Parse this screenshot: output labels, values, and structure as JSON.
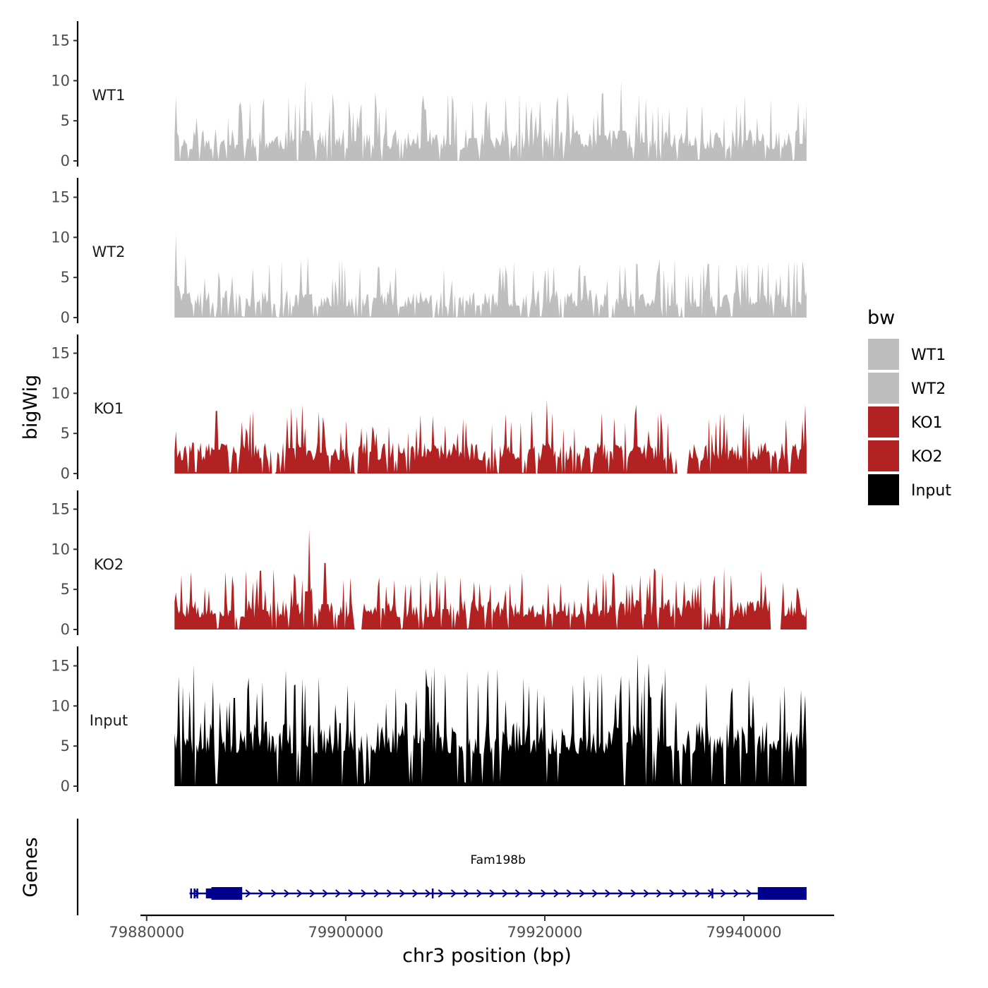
{
  "chart_data": {
    "type": "area",
    "chromosome": "chr3",
    "xlabel": "chr3 position (bp)",
    "ylabel": "bigWig",
    "genes_label": "Genes",
    "xlim": [
      79879800,
      79949000
    ],
    "xticks": [
      79880000,
      79900000,
      79920000,
      79940000
    ],
    "xtick_labels": [
      "79880000",
      "79900000",
      "79920000",
      "79940000"
    ],
    "ylim": [
      0,
      17
    ],
    "yticks": [
      0,
      5,
      10,
      15
    ],
    "ytick_labels": [
      "0",
      "5",
      "10",
      "15"
    ],
    "data_range": [
      79882800,
      79946300
    ],
    "legend": {
      "title": "bw",
      "entries": [
        {
          "label": "WT1",
          "color": "#bebebe"
        },
        {
          "label": "WT2",
          "color": "#bebebe"
        },
        {
          "label": "KO1",
          "color": "#b22222"
        },
        {
          "label": "KO2",
          "color": "#b22222"
        },
        {
          "label": "Input",
          "color": "#000000"
        }
      ]
    },
    "series": [
      {
        "name": "WT1",
        "color": "#bebebe",
        "base": 1.4,
        "amp": 4.8,
        "seed": 11,
        "peaks": [
          [
            79882900,
            8.0
          ],
          [
            79895950,
            9.9
          ],
          [
            79908000,
            6.4
          ],
          [
            79912800,
            7.5
          ],
          [
            79925800,
            8.4
          ],
          [
            79927700,
            9.9
          ],
          [
            79936600,
            4.0
          ],
          [
            79946000,
            5.6
          ]
        ],
        "gaps": [
          [
            79901600,
            79901800
          ],
          [
            79911200,
            79911400
          ],
          [
            79933200,
            79933400
          ]
        ]
      },
      {
        "name": "WT2",
        "color": "#bebebe",
        "base": 1.3,
        "amp": 4.0,
        "seed": 23,
        "peaks": [
          [
            79882900,
            10.4
          ],
          [
            79883900,
            7.8
          ],
          [
            79896200,
            7.6
          ],
          [
            79903300,
            6.3
          ],
          [
            79920900,
            6.4
          ],
          [
            79924000,
            5.2
          ],
          [
            79941500,
            5.1
          ],
          [
            79945900,
            4.1
          ]
        ],
        "gaps": [
          [
            79893200,
            79893300
          ],
          [
            79908700,
            79909000
          ],
          [
            79921700,
            79921900
          ],
          [
            79926400,
            79926700
          ],
          [
            79933800,
            79934100
          ]
        ]
      },
      {
        "name": "KO1",
        "color": "#b22222",
        "base": 1.6,
        "amp": 4.2,
        "seed": 37,
        "peaks": [
          [
            79882900,
            5.3
          ],
          [
            79887000,
            7.8
          ],
          [
            79894500,
            8.3
          ],
          [
            79895600,
            8.6
          ],
          [
            79897300,
            6.8
          ],
          [
            79916600,
            6.5
          ],
          [
            79918700,
            7.9
          ],
          [
            79920200,
            9.2
          ],
          [
            79929200,
            8.6
          ],
          [
            79946200,
            8.6
          ]
        ],
        "gaps": [
          [
            79892600,
            79892900
          ],
          [
            79901000,
            79901200
          ],
          [
            79914000,
            79914200
          ],
          [
            79919000,
            79919300
          ],
          [
            79933300,
            79934300
          ]
        ]
      },
      {
        "name": "KO2",
        "color": "#b22222",
        "base": 1.5,
        "amp": 4.2,
        "seed": 51,
        "peaks": [
          [
            79882900,
            4.6
          ],
          [
            79891400,
            6.5
          ],
          [
            79894800,
            7.0
          ],
          [
            79896300,
            12.5
          ],
          [
            79897900,
            8.3
          ],
          [
            79910000,
            6.7
          ],
          [
            79913400,
            5.8
          ],
          [
            79921600,
            5.8
          ],
          [
            79935100,
            5.2
          ],
          [
            79945500,
            4.7
          ]
        ],
        "gaps": [
          [
            79901000,
            79901700
          ],
          [
            79935700,
            79936000
          ],
          [
            79942600,
            79943700
          ]
        ]
      },
      {
        "name": "Input",
        "color": "#000000",
        "base": 4.0,
        "amp": 7.6,
        "seed": 71,
        "peaks": [
          [
            79888800,
            11.0
          ],
          [
            79891600,
            13.0
          ],
          [
            79895900,
            12.7
          ],
          [
            79908200,
            12.5
          ],
          [
            79917900,
            13.5
          ],
          [
            79929300,
            16.5
          ],
          [
            79932100,
            13.0
          ],
          [
            79938800,
            12.3
          ],
          [
            79945700,
            12.0
          ]
        ],
        "gaps": []
      }
    ],
    "genes": [
      {
        "name": "Fam198b",
        "start": 79884300,
        "end": 79946300,
        "strand": "+",
        "color": "#00008b",
        "exons": [
          [
            79884380,
            79884520
          ],
          [
            79884720,
            79884830
          ],
          [
            79885000,
            79885120
          ],
          [
            79885950,
            79886500
          ],
          [
            79886500,
            79889600
          ],
          [
            79908650,
            79908780
          ],
          [
            79936750,
            79936880
          ],
          [
            79941400,
            79946300
          ]
        ]
      }
    ]
  }
}
